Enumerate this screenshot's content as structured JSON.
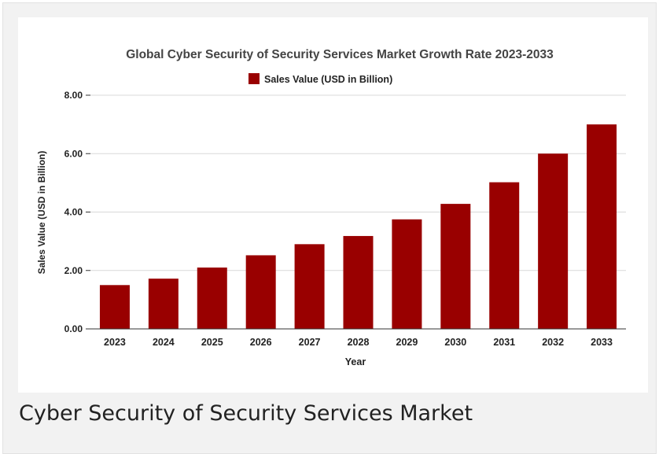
{
  "caption": "Cyber Security of Security Services Market",
  "colors": {
    "bar": "#990000",
    "axis": "#333333",
    "grid": "#d9d9d9",
    "title": "#444444",
    "text": "#222222"
  },
  "chart_data": {
    "type": "bar",
    "title": "Global Cyber Security of Security Services Market Growth Rate 2023-2033",
    "xlabel": "Year",
    "ylabel": "Sales Value (USD in Billion)",
    "legend": {
      "position": "top",
      "entries": [
        "Sales Value (USD in Billion)"
      ]
    },
    "categories": [
      "2023",
      "2024",
      "2025",
      "2026",
      "2027",
      "2028",
      "2029",
      "2030",
      "2031",
      "2032",
      "2033"
    ],
    "series": [
      {
        "name": "Sales Value (USD in Billion)",
        "values": [
          1.5,
          1.72,
          2.1,
          2.52,
          2.9,
          3.18,
          3.75,
          4.28,
          5.02,
          6.0,
          7.0
        ]
      }
    ],
    "ylim": [
      0,
      8
    ],
    "yticks": [
      "0.00",
      "2.00",
      "4.00",
      "6.00",
      "8.00"
    ],
    "grid": true
  }
}
